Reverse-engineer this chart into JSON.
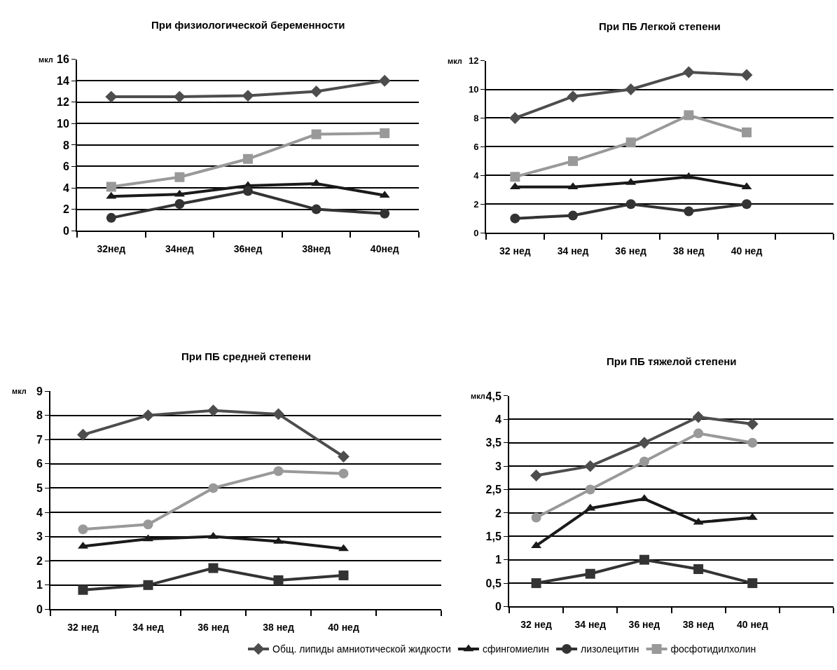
{
  "chart_data": [
    {
      "type": "line",
      "title": "При физиологической беременности",
      "ylabel": "мкл",
      "categories": [
        "32нед",
        "34нед",
        "36нед",
        "38нед",
        "40нед"
      ],
      "ylim": [
        0,
        16
      ],
      "yticks": [
        0,
        2,
        4,
        6,
        8,
        10,
        12,
        14,
        16
      ],
      "grid": "y",
      "legend": "bottom",
      "line_style": "solid",
      "series": [
        {
          "name": "Общ. липиды амниотической жидкости",
          "color": "#4d4d4d",
          "marker": "diamond",
          "values": [
            12.5,
            12.5,
            12.6,
            13.0,
            14.0
          ]
        },
        {
          "name": "сфингомиелин",
          "color": "#1a1a1a",
          "marker": "triangle",
          "values": [
            3.2,
            3.4,
            4.2,
            4.4,
            3.3
          ]
        },
        {
          "name": "лизолецитин",
          "color": "#333333",
          "marker": "circle",
          "values": [
            1.2,
            2.5,
            3.7,
            2.0,
            1.6
          ]
        },
        {
          "name": "фосфотидилхолин",
          "color": "#999999",
          "marker": "square",
          "values": [
            4.1,
            5.0,
            6.7,
            9.0,
            9.1
          ]
        }
      ]
    },
    {
      "type": "line",
      "title": "При ПБ Легкой степени",
      "ylabel": "мкл",
      "categories": [
        "32 нед",
        "34 нед",
        "36 нед",
        "38 нед",
        "40 нед",
        null
      ],
      "ylim": [
        0,
        12
      ],
      "yticks": [
        0,
        2,
        4,
        6,
        8,
        10,
        12
      ],
      "grid": "y",
      "legend": "bottom",
      "line_style": "solid",
      "series": [
        {
          "name": "Общ. липиды амниотической жидкости",
          "color": "#4d4d4d",
          "marker": "diamond",
          "values": [
            8.0,
            9.5,
            10.0,
            11.2,
            11.0,
            null
          ]
        },
        {
          "name": "сфингомиелин",
          "color": "#1a1a1a",
          "marker": "triangle",
          "values": [
            3.2,
            3.2,
            3.5,
            3.9,
            3.2,
            null
          ]
        },
        {
          "name": "лизолецитин",
          "color": "#333333",
          "marker": "circle",
          "values": [
            1.0,
            1.2,
            2.0,
            1.5,
            2.0,
            null
          ]
        },
        {
          "name": "фосфотидилхолин",
          "color": "#999999",
          "marker": "square",
          "values": [
            3.9,
            5.0,
            6.3,
            8.2,
            7.0,
            null
          ]
        }
      ]
    },
    {
      "type": "line",
      "title": "При ПБ средней степени",
      "ylabel": "мкл",
      "categories": [
        "32 нед",
        "34 нед",
        "36 нед",
        "38 нед",
        "40 нед",
        null
      ],
      "ylim": [
        0,
        9
      ],
      "yticks": [
        0,
        1,
        2,
        3,
        4,
        5,
        6,
        7,
        8,
        9
      ],
      "grid": "y",
      "legend": "bottom",
      "line_style": "solid",
      "series": [
        {
          "name": "Общ. липиды амниотической жидкости",
          "color": "#4d4d4d",
          "marker": "diamond",
          "values": [
            7.2,
            8.0,
            8.2,
            8.05,
            6.3,
            null
          ]
        },
        {
          "name": "сфингомиелин",
          "color": "#1a1a1a",
          "marker": "triangle",
          "values": [
            2.6,
            2.9,
            3.0,
            2.8,
            2.5,
            null
          ]
        },
        {
          "name": "лизолецитин",
          "color": "#333333",
          "marker": "square",
          "values": [
            0.8,
            1.0,
            1.7,
            1.2,
            1.4,
            null
          ]
        },
        {
          "name": "фосфотидилхолин",
          "color": "#999999",
          "marker": "circle",
          "values": [
            3.3,
            3.5,
            5.0,
            5.7,
            5.6,
            null
          ]
        }
      ]
    },
    {
      "type": "line",
      "title": "При ПБ тяжелой степени",
      "ylabel": "мкл",
      "categories": [
        "32 нед",
        "34 нед",
        "36 нед",
        "38 нед",
        "40 нед",
        null
      ],
      "ylim": [
        0,
        4.5
      ],
      "yticks": [
        0,
        {
          "value": 0.5,
          "label": "0,5"
        },
        1,
        {
          "value": 1.5,
          "label": "1,5"
        },
        2,
        {
          "value": 2.5,
          "label": "2,5"
        },
        3,
        {
          "value": 3.5,
          "label": "3,5"
        },
        4,
        {
          "value": 4.5,
          "label": "4,5"
        }
      ],
      "grid": "y",
      "legend": "bottom",
      "line_style": "solid",
      "series": [
        {
          "name": "Общ. липиды амниотической жидкости",
          "color": "#4d4d4d",
          "marker": "diamond",
          "values": [
            2.8,
            3.0,
            3.5,
            4.05,
            3.9,
            null
          ]
        },
        {
          "name": "сфингомиелин",
          "color": "#1a1a1a",
          "marker": "triangle",
          "values": [
            1.3,
            2.1,
            2.3,
            1.8,
            1.9,
            null
          ]
        },
        {
          "name": "лизолецитин",
          "color": "#333333",
          "marker": "square",
          "values": [
            0.5,
            0.7,
            1.0,
            0.8,
            0.5,
            null
          ]
        },
        {
          "name": "фосфотидилхолин",
          "color": "#999999",
          "marker": "circle",
          "values": [
            1.9,
            2.5,
            3.1,
            3.7,
            3.5,
            null
          ]
        }
      ]
    }
  ]
}
